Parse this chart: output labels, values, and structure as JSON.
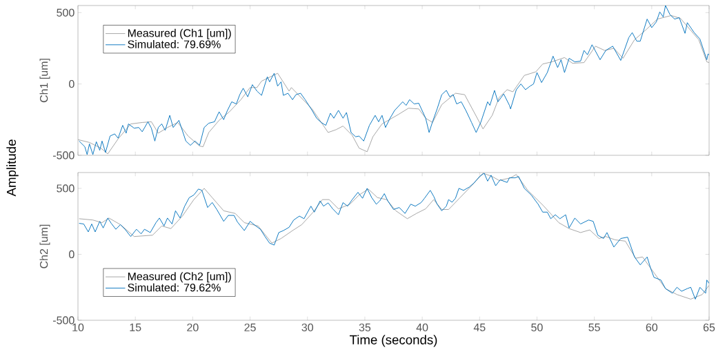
{
  "chart_data": [
    {
      "type": "line",
      "ylabel": "Ch1 [um]",
      "annotations": [
        "Amplitude"
      ],
      "xlim": [
        10,
        65
      ],
      "ylim": [
        -500,
        550
      ],
      "xticks": [
        10,
        15,
        20,
        25,
        30,
        35,
        40,
        45,
        50,
        55,
        60,
        65
      ],
      "yticks": [
        -500,
        0,
        500
      ],
      "tick_labels": "y",
      "legend": "top left",
      "series": [
        {
          "name": "Measured (Ch1 [um])",
          "color": "#a0a0a0",
          "x": [
            10,
            11,
            12,
            12.6,
            13.5,
            14.6,
            15.6,
            16.4,
            17.0,
            17.8,
            18.7,
            19.6,
            20.6,
            20.9,
            21.4,
            22.3,
            23.2,
            24.2,
            25.0,
            25.6,
            26.0,
            27.4,
            28.4,
            28.6,
            30.4,
            31.8,
            32.5,
            33.1,
            33.9,
            34.5,
            35.2,
            35.7,
            36.5,
            37.9,
            38.8,
            39.7,
            40.3,
            40.9,
            41.7,
            42.9,
            43.7,
            44.5,
            45.3,
            46.1,
            46.7,
            47.4,
            47.9,
            48.9,
            49.9,
            50.5,
            51.3,
            52.4,
            53.1,
            54.1,
            55.1,
            55.9,
            56.7,
            57.5,
            58.5,
            59.5,
            60.5,
            61.7,
            62.5,
            63.3,
            64.1,
            64.8,
            65
          ],
          "values": [
            -390,
            -410,
            -450,
            -490,
            -385,
            -280,
            -270,
            -265,
            -345,
            -305,
            -270,
            -365,
            -435,
            -440,
            -340,
            -255,
            -195,
            -110,
            -25,
            -25,
            20,
            75,
            -50,
            -25,
            -175,
            -340,
            -320,
            -295,
            -360,
            -450,
            -475,
            -370,
            -280,
            -215,
            -170,
            -175,
            -240,
            -270,
            -145,
            -65,
            -75,
            -195,
            -315,
            -220,
            -95,
            -40,
            -55,
            60,
            85,
            140,
            155,
            185,
            145,
            150,
            265,
            235,
            250,
            180,
            310,
            380,
            455,
            480,
            460,
            385,
            310,
            155,
            150
          ]
        },
        {
          "name": "Simulated: 79.69%",
          "color": "#0072bd",
          "x": [
            10.1,
            10.6,
            10.8,
            11,
            11.3,
            11.6,
            11.9,
            12.1,
            12.4,
            12.8,
            13.2,
            13.5,
            13.9,
            14.2,
            14.4,
            14.9,
            15.3,
            15.6,
            16.1,
            16.4,
            16.7,
            17.0,
            17.3,
            17.6,
            18.0,
            18.3,
            18.8,
            19.4,
            19.8,
            20.2,
            20.6,
            21.0,
            21.4,
            21.9,
            22.3,
            22.7,
            23.0,
            23.4,
            23.8,
            24.1,
            24.4,
            24.8,
            25.2,
            25.6,
            26.0,
            26.5,
            26.7,
            27.1,
            27.4,
            27.7,
            27.9,
            28.3,
            28.7,
            29.0,
            29.4,
            29.8,
            30.4,
            30.8,
            31.2,
            31.6,
            32.0,
            32.3,
            32.7,
            33.1,
            33.4,
            33.8,
            34.2,
            34.5,
            34.9,
            35.4,
            35.9,
            36.2,
            36.5,
            36.8,
            37.2,
            37.6,
            38.3,
            38.6,
            38.9,
            39.3,
            39.7,
            40.3,
            40.6,
            40.9,
            41.3,
            41.7,
            42.1,
            42.4,
            42.7,
            43.0,
            43.4,
            43.8,
            44.3,
            44.7,
            45.1,
            45.7,
            45.9,
            46.3,
            46.6,
            47.1,
            47.6,
            47.7,
            48.2,
            48.6,
            49.0,
            49.4,
            49.7,
            50.0,
            50.4,
            50.9,
            51.4,
            51.8,
            52.1,
            52.4,
            52.8,
            53.3,
            53.8,
            54.1,
            54.4,
            54.8,
            55.5,
            56.0,
            56.6,
            57.3,
            58.0,
            58.3,
            58.7,
            59.0,
            59.6,
            60.0,
            60.4,
            60.7,
            61.0,
            61.2,
            61.6,
            62.0,
            62.4,
            62.9,
            63.1,
            63.7,
            64.2,
            64.8,
            64.9,
            65
          ],
          "values": [
            -400,
            -440,
            -495,
            -420,
            -495,
            -405,
            -465,
            -400,
            -480,
            -365,
            -350,
            -380,
            -290,
            -345,
            -280,
            -310,
            -305,
            -335,
            -265,
            -310,
            -400,
            -305,
            -280,
            -325,
            -220,
            -305,
            -255,
            -400,
            -430,
            -400,
            -430,
            -305,
            -275,
            -265,
            -195,
            -250,
            -190,
            -125,
            -140,
            -75,
            -30,
            -90,
            -5,
            -50,
            -80,
            50,
            15,
            75,
            -15,
            15,
            -80,
            -65,
            -110,
            -75,
            -65,
            -110,
            -185,
            -240,
            -270,
            -290,
            -205,
            -240,
            -185,
            -240,
            -200,
            -340,
            -370,
            -365,
            -400,
            -290,
            -220,
            -265,
            -220,
            -305,
            -240,
            -185,
            -125,
            -150,
            -110,
            -140,
            -135,
            -240,
            -340,
            -265,
            -175,
            -75,
            -45,
            -90,
            -75,
            -140,
            -125,
            -185,
            -270,
            -340,
            -270,
            -125,
            -150,
            -45,
            -125,
            -70,
            -150,
            -175,
            -40,
            0,
            -40,
            -15,
            0,
            80,
            10,
            80,
            195,
            115,
            170,
            80,
            180,
            155,
            160,
            235,
            205,
            275,
            170,
            235,
            265,
            165,
            325,
            360,
            300,
            300,
            455,
            395,
            435,
            505,
            470,
            550,
            485,
            455,
            465,
            355,
            430,
            360,
            315,
            170,
            210,
            205
          ]
        }
      ]
    },
    {
      "type": "line",
      "ylabel": "Ch2 [um]",
      "xlabel": "Time (seconds)",
      "xlim": [
        10,
        65
      ],
      "ylim": [
        -500,
        620
      ],
      "xticks": [
        10,
        15,
        20,
        25,
        30,
        35,
        40,
        45,
        50,
        55,
        60,
        65
      ],
      "yticks": [
        -500,
        0,
        500
      ],
      "legend": "bottom left",
      "series": [
        {
          "name": "Measured (Ch2 [um])",
          "color": "#a0a0a0",
          "x": [
            10.1,
            11.3,
            12.1,
            12.7,
            13.7,
            14.9,
            16.5,
            17.3,
            18.1,
            19.1,
            20.1,
            21.0,
            21.7,
            22.7,
            23.7,
            24.5,
            25.7,
            26.9,
            27.7,
            28.7,
            29.5,
            30.5,
            31.3,
            31.9,
            32.7,
            33.7,
            34.5,
            35.3,
            36.1,
            36.9,
            37.7,
            38.7,
            39.5,
            40.3,
            41.0,
            41.7,
            42.3,
            43.3,
            44.3,
            45.3,
            46.1,
            46.7,
            47.7,
            48.2,
            49.2,
            50.6,
            51.9,
            52.8,
            53.8,
            54.6,
            55.4,
            56.0,
            56.8,
            57.7,
            58.6,
            59.2,
            60.2,
            61.2,
            62.2,
            63.4,
            64.4,
            65
          ],
          "values": [
            270,
            260,
            240,
            275,
            225,
            135,
            145,
            215,
            195,
            290,
            415,
            500,
            430,
            330,
            310,
            240,
            215,
            85,
            120,
            180,
            225,
            320,
            415,
            415,
            345,
            380,
            450,
            495,
            430,
            415,
            330,
            270,
            310,
            345,
            415,
            340,
            340,
            430,
            520,
            615,
            590,
            560,
            580,
            605,
            485,
            365,
            240,
            195,
            165,
            185,
            120,
            135,
            110,
            100,
            -30,
            -20,
            -140,
            -260,
            -305,
            -340,
            -305,
            -235
          ]
        },
        {
          "name": "Simulated: 79.62%",
          "color": "#0072bd",
          "x": [
            10.1,
            10.5,
            10.9,
            11.2,
            11.5,
            11.9,
            12.2,
            12.6,
            12.9,
            13.3,
            13.7,
            14.1,
            14.6,
            15.1,
            15.5,
            15.8,
            16.3,
            16.8,
            17.1,
            17.5,
            17.8,
            18.2,
            18.5,
            18.9,
            19.3,
            19.7,
            20.1,
            20.5,
            20.8,
            21.3,
            21.7,
            22.1,
            22.7,
            23.1,
            23.6,
            23.9,
            24.5,
            25.0,
            25.5,
            25.9,
            26.3,
            26.7,
            27.1,
            27.5,
            27.9,
            28.4,
            28.8,
            29.3,
            29.7,
            30.3,
            30.6,
            31.1,
            31.4,
            31.8,
            32.2,
            32.7,
            33.1,
            33.5,
            33.9,
            34.4,
            34.8,
            35.2,
            35.6,
            36.0,
            36.3,
            36.7,
            37.0,
            37.5,
            38.0,
            38.5,
            39.0,
            39.4,
            39.9,
            40.2,
            40.7,
            41.0,
            41.3,
            41.7,
            42.1,
            42.3,
            42.6,
            42.9,
            43.2,
            43.6,
            44.1,
            44.5,
            45.0,
            45.4,
            45.7,
            46.0,
            46.4,
            46.8,
            47.4,
            47.6,
            48.1,
            48.4,
            48.9,
            49.5,
            50.1,
            50.5,
            50.9,
            51.2,
            51.6,
            52.0,
            52.5,
            52.8,
            53.3,
            53.8,
            54.5,
            54.9,
            55.3,
            55.8,
            56.1,
            56.7,
            57.3,
            57.9,
            58.5,
            59.0,
            59.6,
            59.9,
            60.2,
            60.8,
            61.2,
            61.8,
            62.2,
            62.6,
            63.1,
            63.4,
            63.8,
            64.2,
            64.7,
            64.8,
            65
          ],
          "values": [
            235,
            230,
            170,
            230,
            170,
            250,
            200,
            275,
            235,
            190,
            225,
            190,
            135,
            190,
            155,
            190,
            165,
            240,
            275,
            215,
            275,
            230,
            330,
            275,
            365,
            430,
            450,
            495,
            485,
            355,
            393,
            340,
            250,
            295,
            295,
            245,
            180,
            250,
            215,
            190,
            135,
            85,
            70,
            165,
            180,
            205,
            260,
            290,
            270,
            365,
            320,
            405,
            365,
            390,
            345,
            300,
            392,
            365,
            415,
            470,
            425,
            500,
            430,
            380,
            405,
            460,
            405,
            340,
            355,
            310,
            380,
            365,
            392,
            425,
            485,
            440,
            380,
            330,
            365,
            415,
            395,
            425,
            500,
            485,
            510,
            540,
            590,
            615,
            555,
            600,
            520,
            565,
            545,
            580,
            580,
            590,
            500,
            450,
            380,
            320,
            320,
            270,
            300,
            270,
            300,
            200,
            275,
            230,
            260,
            250,
            145,
            120,
            165,
            55,
            120,
            130,
            -20,
            -80,
            -20,
            -105,
            -175,
            -195,
            -260,
            -295,
            -250,
            -280,
            -260,
            -250,
            -340,
            -250,
            -295,
            -195,
            -220
          ]
        }
      ]
    }
  ]
}
